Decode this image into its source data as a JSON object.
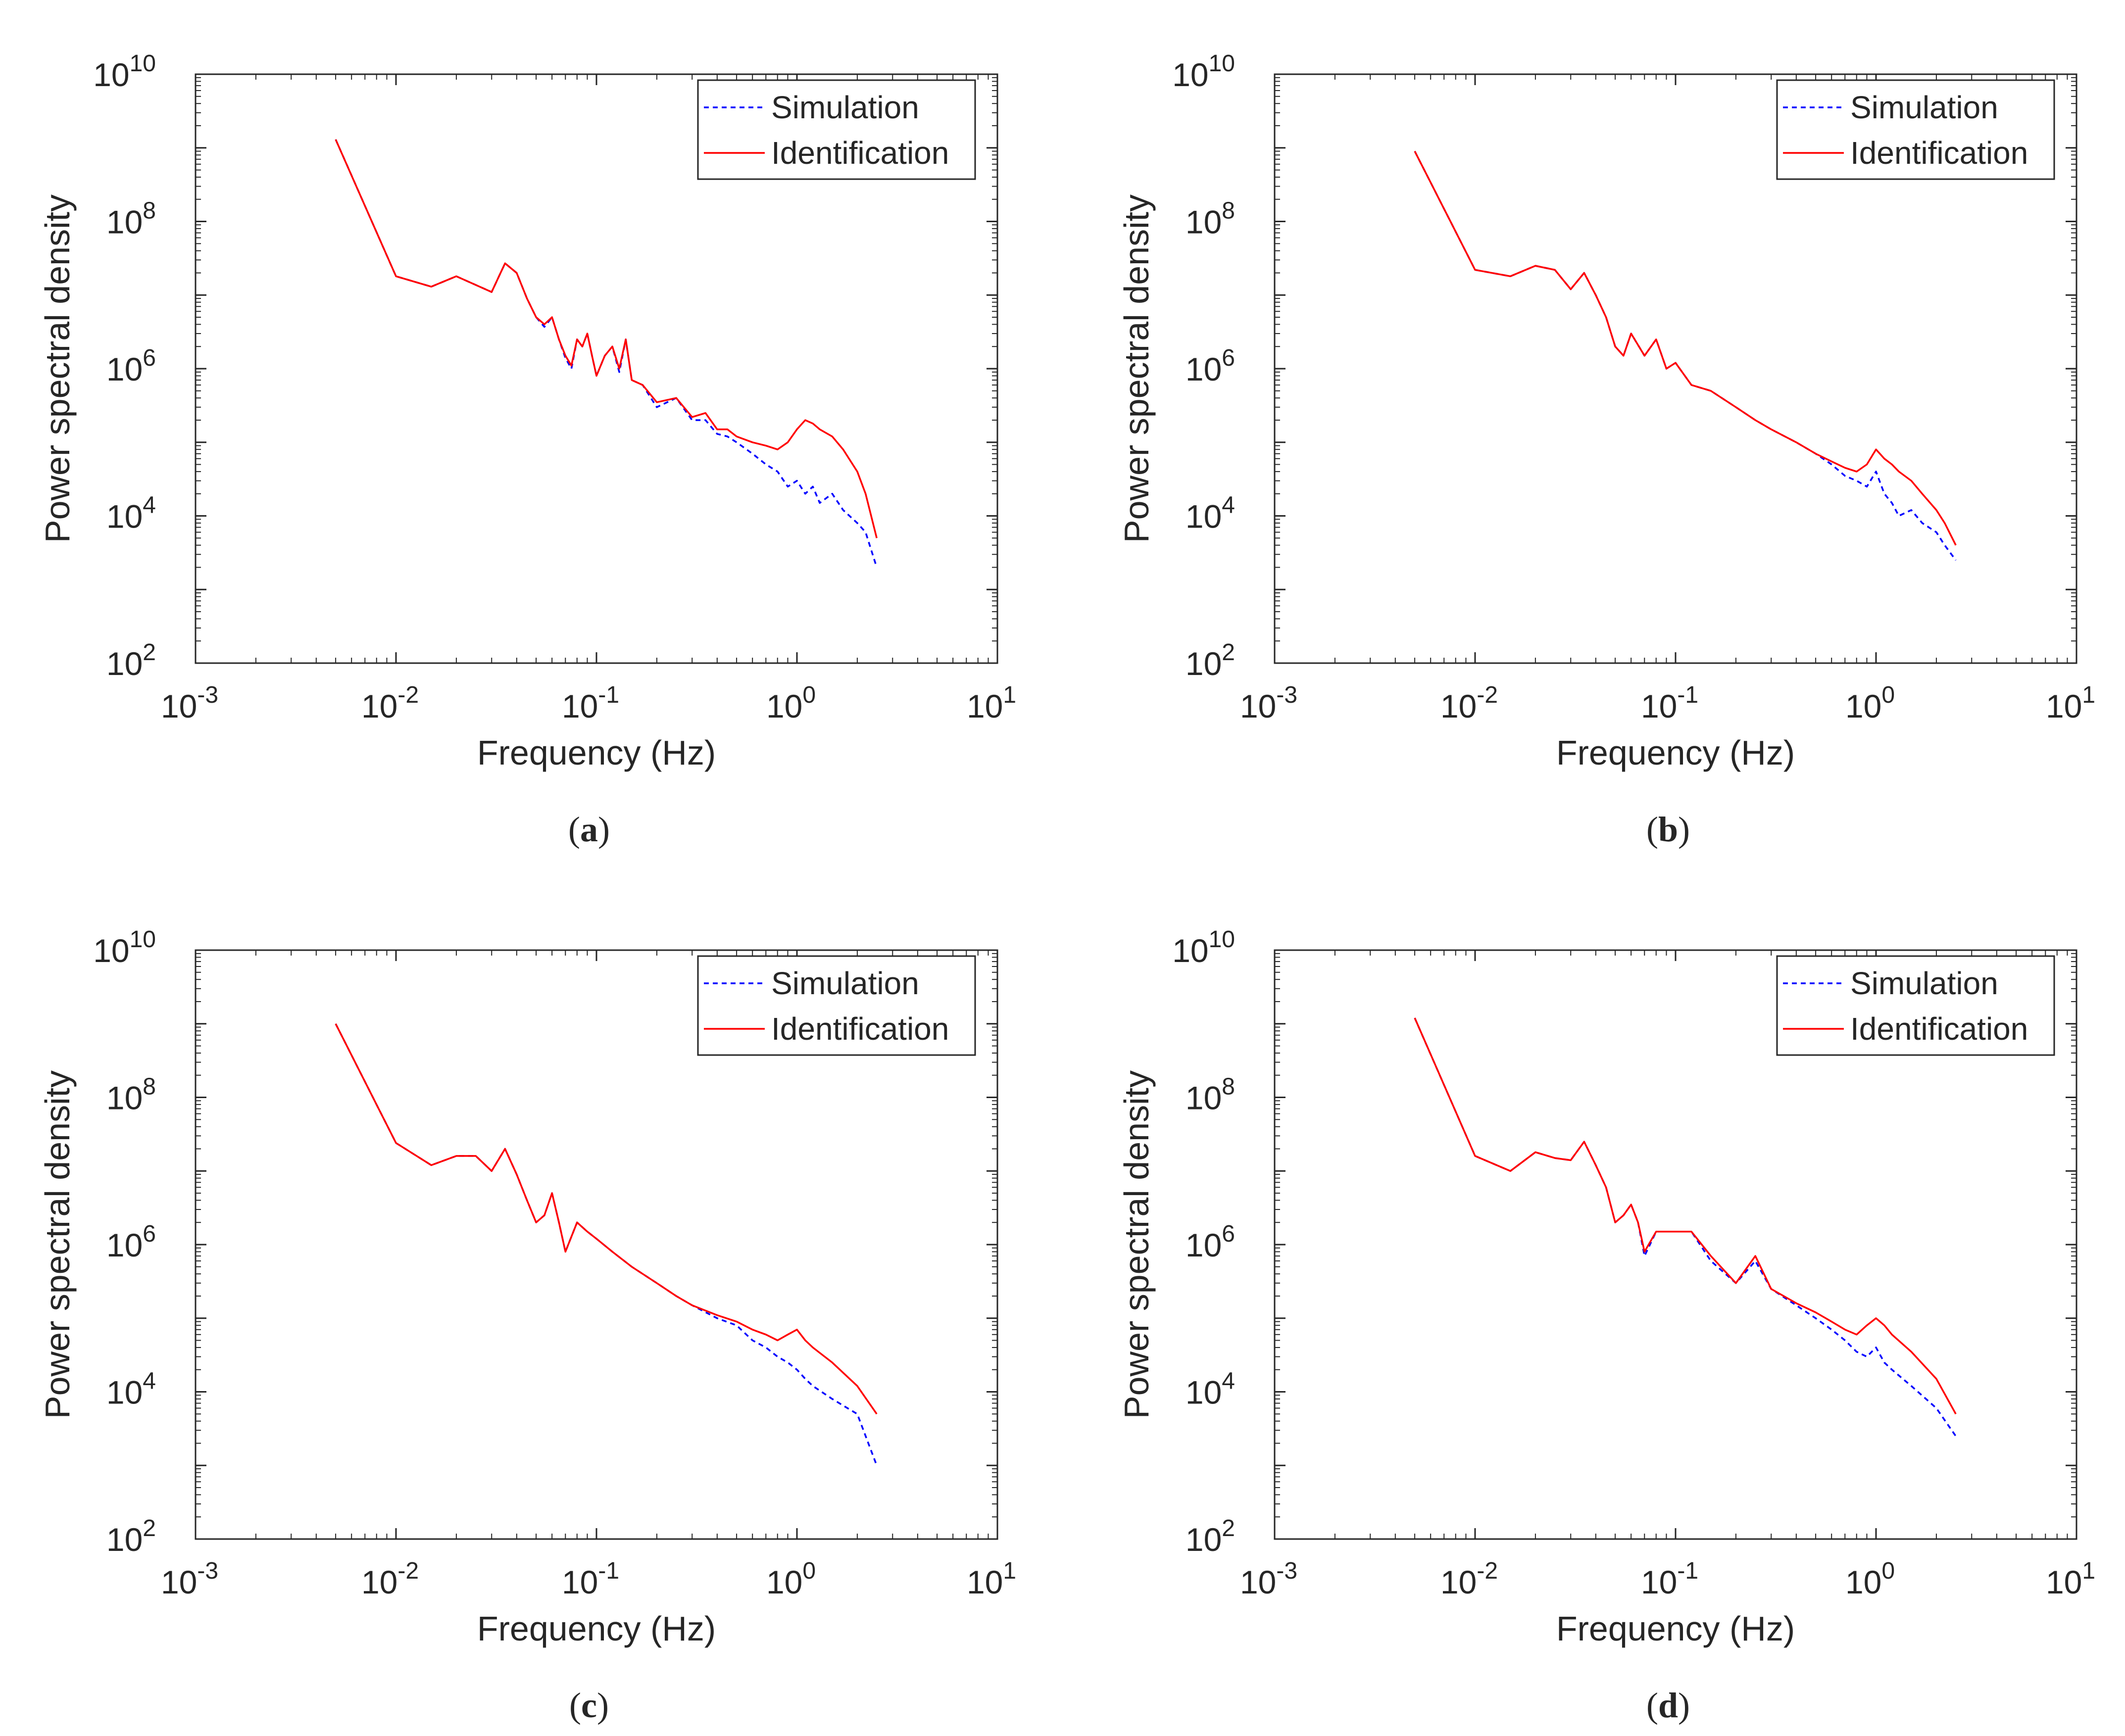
{
  "chart_data": [
    {
      "panel": "a",
      "type": "line",
      "caption_letter": "a",
      "xlabel": "Frequency (Hz)",
      "ylabel": "Power spectral density",
      "xscale": "log",
      "yscale": "log",
      "xlim": [
        0.001,
        10
      ],
      "ylim": [
        100,
        10000000000
      ],
      "x_ticks": [
        "-3",
        "-2",
        "-1",
        "0",
        "1"
      ],
      "y_ticks": [
        "2",
        "4",
        "6",
        "8",
        "10"
      ],
      "grid": false,
      "legend_position": "top-right",
      "series": [
        {
          "name": "Simulation",
          "color": "#0000ff",
          "style": "dashed",
          "x": [
            0.005,
            0.01,
            0.015,
            0.02,
            0.03,
            0.035,
            0.04,
            0.045,
            0.05,
            0.055,
            0.06,
            0.065,
            0.07,
            0.075,
            0.08,
            0.085,
            0.09,
            0.095,
            0.1,
            0.11,
            0.12,
            0.13,
            0.14,
            0.15,
            0.17,
            0.2,
            0.25,
            0.3,
            0.35,
            0.4,
            0.45,
            0.5,
            0.6,
            0.7,
            0.8,
            0.9,
            1.0,
            1.1,
            1.2,
            1.3,
            1.5,
            1.7,
            2.0,
            2.2,
            2.5
          ],
          "y": [
            1300000000,
            18000000,
            13000000,
            18000000,
            11000000,
            27000000,
            20000000,
            9000000,
            5000000,
            3700000,
            5000000,
            2500000,
            1400000,
            1000000,
            2500000,
            2000000,
            3000000,
            1500000,
            800000,
            1500000,
            2000000,
            900000,
            2500000,
            700000,
            600000,
            300000,
            400000,
            200000,
            200000,
            130000,
            120000,
            100000,
            70000,
            50000,
            40000,
            25000,
            30000,
            20000,
            25000,
            15000,
            20000,
            12000,
            8000,
            6000,
            2000
          ]
        },
        {
          "name": "Identification",
          "color": "#ff0000",
          "style": "solid",
          "x": [
            0.005,
            0.01,
            0.015,
            0.02,
            0.03,
            0.035,
            0.04,
            0.045,
            0.05,
            0.055,
            0.06,
            0.065,
            0.07,
            0.075,
            0.08,
            0.085,
            0.09,
            0.095,
            0.1,
            0.11,
            0.12,
            0.13,
            0.14,
            0.15,
            0.17,
            0.2,
            0.25,
            0.3,
            0.35,
            0.4,
            0.45,
            0.5,
            0.6,
            0.7,
            0.8,
            0.9,
            1.0,
            1.1,
            1.2,
            1.3,
            1.5,
            1.7,
            2.0,
            2.2,
            2.5
          ],
          "y": [
            1300000000,
            18000000,
            13000000,
            18000000,
            11000000,
            27000000,
            20000000,
            9000000,
            5000000,
            4000000,
            5000000,
            2500000,
            1500000,
            1100000,
            2500000,
            2000000,
            3000000,
            1500000,
            800000,
            1500000,
            2000000,
            1000000,
            2500000,
            700000,
            600000,
            350000,
            400000,
            220000,
            250000,
            150000,
            150000,
            120000,
            100000,
            90000,
            80000,
            100000,
            150000,
            200000,
            180000,
            150000,
            120000,
            80000,
            40000,
            20000,
            5000
          ]
        }
      ]
    },
    {
      "panel": "b",
      "type": "line",
      "caption_letter": "b",
      "xlabel": "Frequency (Hz)",
      "ylabel": "Power spectral density",
      "xscale": "log",
      "yscale": "log",
      "xlim": [
        0.001,
        10
      ],
      "ylim": [
        100,
        10000000000
      ],
      "x_ticks": [
        "-3",
        "-2",
        "-1",
        "0",
        "1"
      ],
      "y_ticks": [
        "2",
        "4",
        "6",
        "8",
        "10"
      ],
      "grid": false,
      "legend_position": "top-right",
      "series": [
        {
          "name": "Simulation",
          "color": "#0000ff",
          "style": "dashed",
          "x": [
            0.005,
            0.01,
            0.015,
            0.02,
            0.025,
            0.03,
            0.035,
            0.04,
            0.045,
            0.05,
            0.055,
            0.06,
            0.07,
            0.08,
            0.09,
            0.1,
            0.12,
            0.15,
            0.2,
            0.25,
            0.3,
            0.4,
            0.5,
            0.6,
            0.7,
            0.8,
            0.9,
            1.0,
            1.1,
            1.2,
            1.3,
            1.5,
            1.7,
            2.0,
            2.2,
            2.5
          ],
          "y": [
            900000000,
            22000000,
            18000000,
            25000000,
            22000000,
            12000000,
            20000000,
            10000000,
            5000000,
            2000000,
            1500000,
            3000000,
            1500000,
            2500000,
            1000000,
            1200000,
            600000,
            500000,
            300000,
            200000,
            150000,
            100000,
            70000,
            50000,
            35000,
            30000,
            25000,
            40000,
            20000,
            15000,
            10000,
            12000,
            8000,
            6000,
            4000,
            2500
          ]
        },
        {
          "name": "Identification",
          "color": "#ff0000",
          "style": "solid",
          "x": [
            0.005,
            0.01,
            0.015,
            0.02,
            0.025,
            0.03,
            0.035,
            0.04,
            0.045,
            0.05,
            0.055,
            0.06,
            0.07,
            0.08,
            0.09,
            0.1,
            0.12,
            0.15,
            0.2,
            0.25,
            0.3,
            0.4,
            0.5,
            0.6,
            0.7,
            0.8,
            0.9,
            1.0,
            1.1,
            1.2,
            1.3,
            1.5,
            1.7,
            2.0,
            2.2,
            2.5
          ],
          "y": [
            900000000,
            22000000,
            18000000,
            25000000,
            22000000,
            12000000,
            20000000,
            10000000,
            5000000,
            2000000,
            1500000,
            3000000,
            1500000,
            2500000,
            1000000,
            1200000,
            600000,
            500000,
            300000,
            200000,
            150000,
            100000,
            70000,
            55000,
            45000,
            40000,
            50000,
            80000,
            60000,
            50000,
            40000,
            30000,
            20000,
            12000,
            8000,
            4000
          ]
        }
      ]
    },
    {
      "panel": "c",
      "type": "line",
      "caption_letter": "c",
      "xlabel": "Frequency (Hz)",
      "ylabel": "Power spectral density",
      "xscale": "log",
      "yscale": "log",
      "xlim": [
        0.001,
        10
      ],
      "ylim": [
        100,
        10000000000
      ],
      "x_ticks": [
        "-3",
        "-2",
        "-1",
        "0",
        "1"
      ],
      "y_ticks": [
        "2",
        "4",
        "6",
        "8",
        "10"
      ],
      "grid": false,
      "legend_position": "top-right",
      "series": [
        {
          "name": "Simulation",
          "color": "#0000ff",
          "style": "dashed",
          "x": [
            0.005,
            0.01,
            0.015,
            0.02,
            0.025,
            0.03,
            0.035,
            0.04,
            0.045,
            0.05,
            0.055,
            0.06,
            0.065,
            0.07,
            0.08,
            0.09,
            0.1,
            0.12,
            0.15,
            0.2,
            0.25,
            0.3,
            0.4,
            0.5,
            0.6,
            0.7,
            0.8,
            0.9,
            1.0,
            1.1,
            1.2,
            1.5,
            2.0,
            2.5
          ],
          "y": [
            1000000000,
            24000000,
            12000000,
            16000000,
            16000000,
            10000000,
            20000000,
            9000000,
            4000000,
            2000000,
            2500000,
            5000000,
            2000000,
            800000,
            2000000,
            1500000,
            1200000,
            800000,
            500000,
            300000,
            200000,
            150000,
            100000,
            80000,
            50000,
            40000,
            30000,
            25000,
            20000,
            15000,
            12000,
            8000,
            5000,
            1000
          ]
        },
        {
          "name": "Identification",
          "color": "#ff0000",
          "style": "solid",
          "x": [
            0.005,
            0.01,
            0.015,
            0.02,
            0.025,
            0.03,
            0.035,
            0.04,
            0.045,
            0.05,
            0.055,
            0.06,
            0.065,
            0.07,
            0.08,
            0.09,
            0.1,
            0.12,
            0.15,
            0.2,
            0.25,
            0.3,
            0.4,
            0.5,
            0.6,
            0.7,
            0.8,
            0.9,
            1.0,
            1.1,
            1.2,
            1.5,
            2.0,
            2.5
          ],
          "y": [
            1000000000,
            24000000,
            12000000,
            16000000,
            16000000,
            10000000,
            20000000,
            9000000,
            4000000,
            2000000,
            2500000,
            5000000,
            2000000,
            800000,
            2000000,
            1500000,
            1200000,
            800000,
            500000,
            300000,
            200000,
            150000,
            110000,
            90000,
            70000,
            60000,
            50000,
            60000,
            70000,
            50000,
            40000,
            25000,
            12000,
            5000
          ]
        }
      ]
    },
    {
      "panel": "d",
      "type": "line",
      "caption_letter": "d",
      "xlabel": "Frequency (Hz)",
      "ylabel": "Power spectral density",
      "xscale": "log",
      "yscale": "log",
      "xlim": [
        0.001,
        10
      ],
      "ylim": [
        100,
        10000000000
      ],
      "x_ticks": [
        "-3",
        "-2",
        "-1",
        "0",
        "1"
      ],
      "y_ticks": [
        "2",
        "4",
        "6",
        "8",
        "10"
      ],
      "grid": false,
      "legend_position": "top-right",
      "series": [
        {
          "name": "Simulation",
          "color": "#0000ff",
          "style": "dashed",
          "x": [
            0.005,
            0.01,
            0.015,
            0.02,
            0.025,
            0.03,
            0.035,
            0.04,
            0.045,
            0.05,
            0.055,
            0.06,
            0.065,
            0.07,
            0.08,
            0.09,
            0.1,
            0.12,
            0.15,
            0.2,
            0.25,
            0.3,
            0.4,
            0.5,
            0.6,
            0.7,
            0.8,
            0.9,
            1.0,
            1.1,
            1.2,
            1.5,
            2.0,
            2.5
          ],
          "y": [
            1200000000,
            16000000,
            10000000,
            18000000,
            15000000,
            14000000,
            25000000,
            12000000,
            6000000,
            2000000,
            2500000,
            3500000,
            2000000,
            700000,
            1500000,
            1500000,
            1500000,
            1500000,
            600000,
            300000,
            600000,
            250000,
            150000,
            100000,
            70000,
            50000,
            35000,
            30000,
            40000,
            25000,
            20000,
            12000,
            6000,
            2500
          ]
        },
        {
          "name": "Identification",
          "color": "#ff0000",
          "style": "solid",
          "x": [
            0.005,
            0.01,
            0.015,
            0.02,
            0.025,
            0.03,
            0.035,
            0.04,
            0.045,
            0.05,
            0.055,
            0.06,
            0.065,
            0.07,
            0.08,
            0.09,
            0.1,
            0.12,
            0.15,
            0.2,
            0.25,
            0.3,
            0.4,
            0.5,
            0.6,
            0.7,
            0.8,
            0.9,
            1.0,
            1.1,
            1.2,
            1.5,
            2.0,
            2.5
          ],
          "y": [
            1200000000,
            16000000,
            10000000,
            18000000,
            15000000,
            14000000,
            25000000,
            12000000,
            6000000,
            2000000,
            2500000,
            3500000,
            2000000,
            800000,
            1500000,
            1500000,
            1500000,
            1500000,
            700000,
            300000,
            700000,
            250000,
            160000,
            120000,
            90000,
            70000,
            60000,
            80000,
            100000,
            80000,
            60000,
            35000,
            15000,
            5000
          ]
        }
      ]
    }
  ]
}
